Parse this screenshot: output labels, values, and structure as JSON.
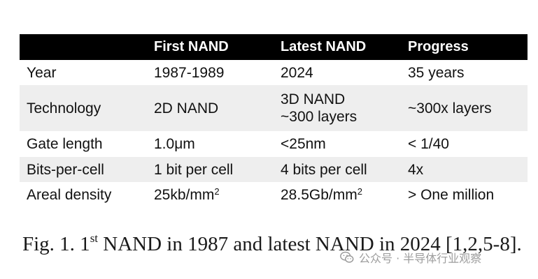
{
  "table": {
    "headers": [
      "",
      "First NAND",
      "Latest NAND",
      "Progress"
    ],
    "rows": [
      {
        "label": "Year",
        "first": "1987-1989",
        "latest": "2024",
        "progress": "35 years"
      },
      {
        "label": "Technology",
        "first": "2D NAND",
        "latest_line1": "3D NAND",
        "latest_line2": "~300 layers",
        "progress": "~300x layers"
      },
      {
        "label": "Gate length",
        "first": "1.0μm",
        "latest": "<25nm",
        "progress": "< 1/40"
      },
      {
        "label": "Bits-per-cell",
        "first": "1 bit per cell",
        "latest": "4 bits per cell",
        "progress": "4x"
      },
      {
        "label": "Areal density",
        "first_base": "25kb/mm",
        "first_sup": "2",
        "latest_base": "28.5Gb/mm",
        "latest_sup": "2",
        "progress": "> One million"
      }
    ]
  },
  "caption": {
    "prefix": "Fig. 1. 1",
    "sup": "st",
    "suffix": " NAND in 1987 and latest NAND in 2024 [1,2,5-8]."
  },
  "watermark": {
    "text": "公众号 · 半导体行业观察",
    "icon": "wechat-icon",
    "color": "#8c8c8c"
  }
}
